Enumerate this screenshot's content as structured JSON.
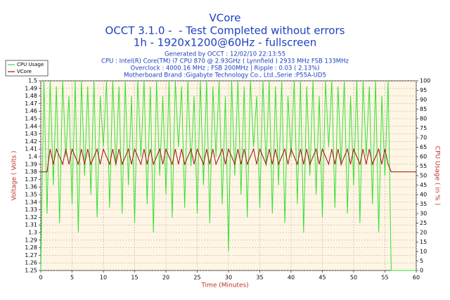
{
  "chart_data": {
    "type": "line",
    "title": "VCore",
    "subtitle_lines": [
      "OCCT 3.1.0 -  - Test Completed without errors",
      "1h - 1920x1200@60Hz - fullscreen"
    ],
    "info_lines": [
      "Generated by OCCT : 12/02/10 22:13:55",
      "CPU : Intel(R) Core(TM) i7 CPU 870 @ 2.93GHz ( Lynnfield ) 2933 MHz FSB 133MHz",
      "Overclock : 4000.16 MHz ; FSB 200MHz | Ripple : 0.03 ( 2.13%)",
      "Motherboard Brand :Gigabyte Technology Co., Ltd.,Serie :P55A-UD5"
    ],
    "x_label": "Time (Minutes)",
    "y_label": "Voltage ( Volts )",
    "y2_label": "CPU Usage ( in % )",
    "xlim": [
      0,
      60
    ],
    "xticks": [
      0,
      5,
      10,
      15,
      20,
      25,
      30,
      35,
      40,
      45,
      50,
      55,
      60
    ],
    "ylim": [
      1.25,
      1.5
    ],
    "yticks": [
      1.25,
      1.26,
      1.27,
      1.28,
      1.29,
      1.3,
      1.31,
      1.32,
      1.33,
      1.34,
      1.35,
      1.36,
      1.37,
      1.38,
      1.39,
      1.4,
      1.41,
      1.42,
      1.43,
      1.44,
      1.45,
      1.46,
      1.47,
      1.48,
      1.49,
      1.5
    ],
    "y2lim": [
      0,
      100
    ],
    "y2ticks": [
      0,
      5,
      10,
      15,
      20,
      25,
      30,
      35,
      40,
      45,
      50,
      55,
      60,
      65,
      70,
      75,
      80,
      85,
      90,
      95,
      100
    ],
    "grid": true,
    "legend": "top-left",
    "x": [
      0,
      0.5,
      1,
      1.5,
      2,
      2.5,
      3,
      3.5,
      4,
      4.5,
      5,
      5.5,
      6,
      6.5,
      7,
      7.5,
      8,
      8.5,
      9,
      9.5,
      10,
      10.5,
      11,
      11.5,
      12,
      12.5,
      13,
      13.5,
      14,
      14.5,
      15,
      15.5,
      16,
      16.5,
      17,
      17.5,
      18,
      18.5,
      19,
      19.5,
      20,
      20.5,
      21,
      21.5,
      22,
      22.5,
      23,
      23.5,
      24,
      24.5,
      25,
      25.5,
      26,
      26.5,
      27,
      27.5,
      28,
      28.5,
      29,
      29.5,
      30,
      30.5,
      31,
      31.5,
      32,
      32.5,
      33,
      33.5,
      34,
      34.5,
      35,
      35.5,
      36,
      36.5,
      37,
      37.5,
      38,
      38.5,
      39,
      39.5,
      40,
      40.5,
      41,
      41.5,
      42,
      42.5,
      43,
      43.5,
      44,
      44.5,
      45,
      45.5,
      46,
      46.5,
      47,
      47.5,
      48,
      48.5,
      49,
      49.5,
      50,
      50.5,
      51,
      51.5,
      52,
      52.5,
      53,
      53.5,
      54,
      54.5,
      55,
      55.5,
      56,
      56.5,
      57,
      57.5,
      58,
      58.5,
      59,
      59.5,
      60
    ],
    "series": [
      {
        "name": "CPU Usage",
        "color": "#33e033",
        "axis": "y2",
        "values": [
          0,
          100,
          30,
          100,
          45,
          97,
          25,
          100,
          60,
          92,
          35,
          100,
          20,
          100,
          50,
          97,
          40,
          100,
          28,
          92,
          65,
          100,
          33,
          100,
          55,
          97,
          30,
          100,
          45,
          92,
          25,
          100,
          60,
          100,
          35,
          97,
          20,
          100,
          50,
          92,
          40,
          100,
          28,
          100,
          65,
          97,
          33,
          100,
          55,
          92,
          30,
          100,
          45,
          100,
          25,
          97,
          60,
          100,
          35,
          92,
          10,
          100,
          50,
          100,
          40,
          97,
          28,
          100,
          65,
          92,
          33,
          100,
          55,
          100,
          30,
          97,
          45,
          100,
          25,
          92,
          60,
          100,
          35,
          100,
          20,
          97,
          50,
          100,
          40,
          92,
          28,
          100,
          65,
          100,
          33,
          97,
          55,
          100,
          30,
          92,
          45,
          100,
          25,
          100,
          60,
          97,
          35,
          100,
          20,
          92,
          50,
          100,
          0,
          0,
          0,
          0,
          0,
          0,
          0,
          0,
          0
        ]
      },
      {
        "name": "VCore",
        "color": "#a01010",
        "values": [
          1.38,
          1.38,
          1.38,
          1.41,
          1.39,
          1.41,
          1.4,
          1.39,
          1.41,
          1.39,
          1.41,
          1.4,
          1.39,
          1.41,
          1.39,
          1.41,
          1.39,
          1.4,
          1.41,
          1.39,
          1.41,
          1.4,
          1.39,
          1.41,
          1.39,
          1.41,
          1.39,
          1.4,
          1.41,
          1.39,
          1.41,
          1.4,
          1.39,
          1.41,
          1.39,
          1.41,
          1.39,
          1.4,
          1.41,
          1.39,
          1.41,
          1.4,
          1.39,
          1.41,
          1.39,
          1.41,
          1.39,
          1.4,
          1.41,
          1.39,
          1.41,
          1.4,
          1.39,
          1.41,
          1.39,
          1.41,
          1.39,
          1.4,
          1.41,
          1.39,
          1.41,
          1.4,
          1.39,
          1.41,
          1.39,
          1.41,
          1.39,
          1.4,
          1.41,
          1.39,
          1.41,
          1.4,
          1.39,
          1.41,
          1.39,
          1.41,
          1.39,
          1.4,
          1.41,
          1.39,
          1.41,
          1.4,
          1.39,
          1.41,
          1.39,
          1.41,
          1.39,
          1.4,
          1.41,
          1.39,
          1.41,
          1.4,
          1.39,
          1.41,
          1.39,
          1.41,
          1.39,
          1.4,
          1.41,
          1.39,
          1.41,
          1.4,
          1.39,
          1.41,
          1.39,
          1.41,
          1.39,
          1.4,
          1.41,
          1.39,
          1.41,
          1.39,
          1.38,
          1.38,
          1.38,
          1.38,
          1.38,
          1.38,
          1.38,
          1.38,
          1.38
        ]
      }
    ]
  }
}
